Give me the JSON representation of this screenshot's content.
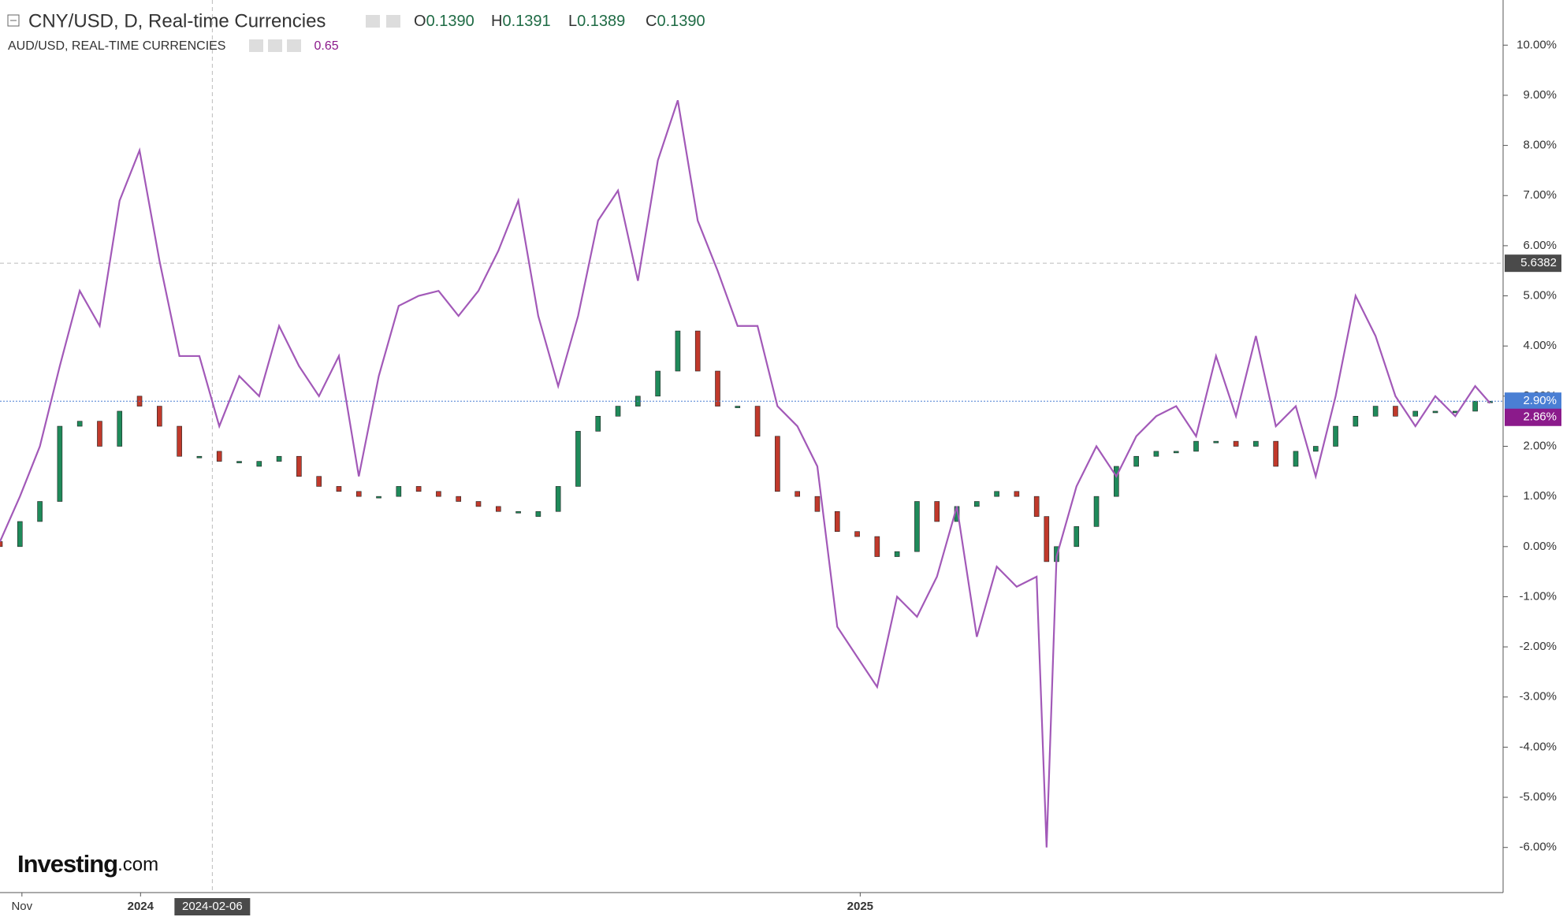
{
  "chart_data": {
    "type": "candlestick_line",
    "title": "CNY/USD, D, Real-time Currencies",
    "ohlc": [
      {
        "label": "O",
        "value": "0.1390"
      },
      {
        "label": "H",
        "value": "0.1391"
      },
      {
        "label": "L",
        "value": "0.1389"
      },
      {
        "label": "C",
        "value": "0.1390"
      }
    ],
    "compare_title": "AUD/USD, REAL-TIME CURRENCIES",
    "compare_value": "0.65",
    "watermark": {
      "brand": "Investing",
      "suffix": ".com"
    },
    "x": [
      0,
      1,
      2,
      3,
      4,
      5,
      6,
      7,
      8,
      9,
      10,
      11,
      12,
      13,
      14,
      15,
      16,
      17,
      18,
      19,
      20,
      21,
      22,
      23,
      24,
      25,
      26,
      27,
      28,
      29,
      30,
      31,
      32,
      33,
      34,
      35,
      36,
      37,
      38,
      39,
      40,
      41,
      42,
      43,
      44,
      45,
      46,
      47,
      48,
      49,
      50,
      51,
      52,
      52.5,
      53,
      54,
      55,
      56,
      57,
      58,
      59,
      60,
      61,
      62,
      63,
      64,
      65,
      66,
      67,
      68,
      69,
      70,
      71,
      72,
      73,
      74,
      74.75
    ],
    "series": [
      {
        "name": "CNY/USD",
        "kind": "candlestick",
        "up_color": "#1f8a5a",
        "down_color": "#c0392b",
        "line_color": "#4a7fd4",
        "open": [
          0.1,
          0.0,
          0.5,
          0.9,
          2.4,
          2.5,
          2.0,
          3.0,
          2.8,
          2.4,
          1.8,
          1.9,
          1.7,
          1.6,
          1.7,
          1.8,
          1.4,
          1.2,
          1.1,
          1.0,
          1.0,
          1.2,
          1.1,
          1.0,
          0.9,
          0.8,
          0.7,
          0.6,
          0.7,
          1.2,
          2.3,
          2.6,
          2.8,
          3.0,
          3.5,
          4.3,
          3.5,
          2.8,
          2.8,
          2.2,
          1.1,
          1.0,
          0.7,
          0.3,
          0.2,
          -0.2,
          -0.1,
          0.9,
          0.5,
          0.8,
          1.0,
          1.1,
          1.0,
          0.6,
          -0.3,
          0.0,
          0.4,
          1.0,
          1.6,
          1.8,
          1.9,
          1.9,
          2.1,
          2.1,
          2.0,
          2.1,
          1.6,
          1.9,
          2.0,
          2.4,
          2.6,
          2.8,
          2.6,
          2.7,
          2.7,
          2.7,
          2.9
        ],
        "close": [
          0.0,
          0.5,
          0.9,
          2.4,
          2.5,
          2.0,
          2.7,
          2.8,
          2.4,
          1.8,
          1.8,
          1.7,
          1.7,
          1.7,
          1.8,
          1.4,
          1.2,
          1.1,
          1.0,
          1.0,
          1.2,
          1.1,
          1.0,
          0.9,
          0.8,
          0.7,
          0.7,
          0.7,
          1.2,
          2.3,
          2.6,
          2.8,
          3.0,
          3.5,
          4.3,
          3.5,
          2.8,
          2.8,
          2.2,
          1.1,
          1.0,
          0.7,
          0.3,
          0.2,
          -0.2,
          -0.1,
          0.9,
          0.5,
          0.8,
          0.9,
          1.1,
          1.0,
          0.6,
          -0.3,
          0.0,
          0.4,
          1.0,
          1.6,
          1.8,
          1.9,
          1.9,
          2.1,
          2.1,
          2.0,
          2.1,
          1.6,
          1.9,
          2.0,
          2.4,
          2.6,
          2.8,
          2.6,
          2.7,
          2.7,
          2.7,
          2.9,
          2.9
        ],
        "last_label": "2.90%"
      },
      {
        "name": "AUD/USD",
        "kind": "line",
        "color": "#a259b8",
        "last_color": "#8b1a8b",
        "values": [
          0.1,
          1.0,
          2.0,
          3.6,
          5.1,
          4.4,
          6.9,
          7.9,
          5.7,
          3.8,
          3.8,
          2.4,
          3.4,
          3.0,
          4.4,
          3.6,
          3.0,
          3.8,
          1.4,
          3.4,
          4.8,
          5.0,
          5.1,
          4.6,
          5.1,
          5.9,
          6.9,
          4.6,
          3.2,
          4.6,
          6.5,
          7.1,
          5.3,
          7.7,
          8.9,
          6.5,
          5.5,
          4.4,
          4.4,
          2.8,
          2.4,
          1.6,
          -1.6,
          -2.2,
          -2.8,
          -1.0,
          -1.4,
          -0.6,
          0.8,
          -1.8,
          -0.4,
          -0.8,
          -0.6,
          -6.0,
          -0.2,
          1.2,
          2.0,
          1.4,
          2.2,
          2.6,
          2.8,
          2.2,
          3.8,
          2.6,
          4.2,
          2.4,
          2.8,
          1.4,
          3.0,
          5.0,
          4.2,
          3.0,
          2.4,
          3.0,
          2.6,
          3.2,
          2.86
        ],
        "last_label": "2.86%"
      }
    ],
    "xlim": [
      0,
      75.4
    ],
    "xticks": [
      {
        "value": 1.1,
        "label": "Nov"
      },
      {
        "value": 7.05,
        "label": "2024"
      },
      {
        "value": 43.15,
        "label": "2025"
      }
    ],
    "ylim": [
      -6.9,
      10.9
    ],
    "yticks": [
      {
        "value": -6,
        "label": "-6.00%"
      },
      {
        "value": -5,
        "label": "-5.00%"
      },
      {
        "value": -4,
        "label": "-4.00%"
      },
      {
        "value": -3,
        "label": "-3.00%"
      },
      {
        "value": -2,
        "label": "-2.00%"
      },
      {
        "value": -1,
        "label": "-1.00%"
      },
      {
        "value": 0,
        "label": "0.00%"
      },
      {
        "value": 1,
        "label": "1.00%"
      },
      {
        "value": 2,
        "label": "2.00%"
      },
      {
        "value": 3,
        "label": "3.00%"
      },
      {
        "value": 4,
        "label": "4.00%"
      },
      {
        "value": 5,
        "label": "5.00%"
      },
      {
        "value": 6,
        "label": "6.00%"
      },
      {
        "value": 7,
        "label": "7.00%"
      },
      {
        "value": 8,
        "label": "8.00%"
      },
      {
        "value": 9,
        "label": "9.00%"
      },
      {
        "value": 10,
        "label": "10.00%"
      }
    ],
    "crosshair": {
      "x": 10.65,
      "x_label": "2024-02-06",
      "y": 5.65,
      "y_label": "5.6382"
    }
  }
}
